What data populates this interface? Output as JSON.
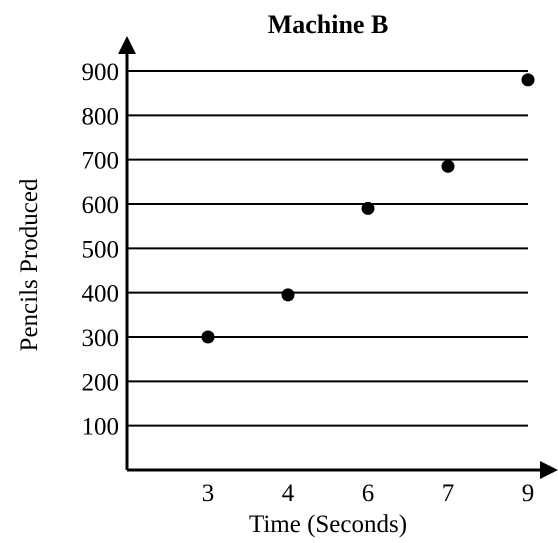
{
  "chart_data": {
    "type": "scatter",
    "title": "Machine B",
    "xlabel": "Time (Seconds)",
    "ylabel": "Pencils Produced",
    "x_ticks": [
      "3",
      "4",
      "6",
      "7",
      "9"
    ],
    "y_ticks": [
      "100",
      "200",
      "300",
      "400",
      "500",
      "600",
      "700",
      "800",
      "900"
    ],
    "ylim": [
      0,
      900
    ],
    "points": [
      {
        "x": 3,
        "y": 300
      },
      {
        "x": 4,
        "y": 395
      },
      {
        "x": 6,
        "y": 590
      },
      {
        "x": 7,
        "y": 685
      },
      {
        "x": 9,
        "y": 880
      }
    ],
    "grid": "horizontal",
    "colors": {
      "ink": "#000000",
      "background": "#ffffff"
    }
  }
}
